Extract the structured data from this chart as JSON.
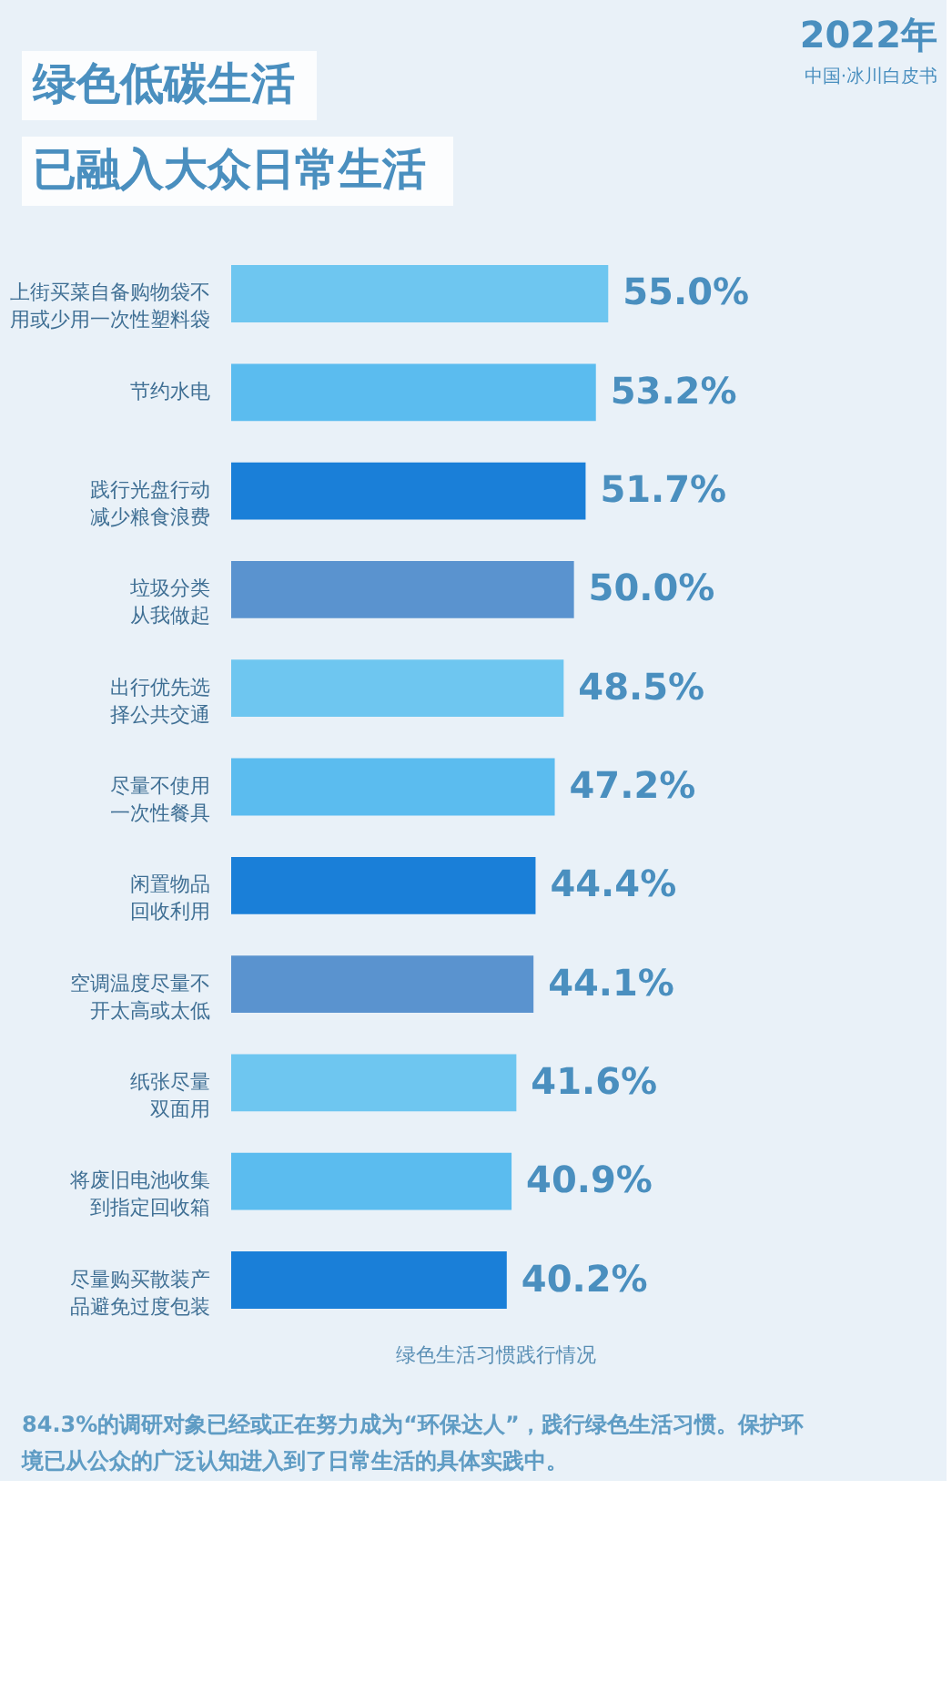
{
  "chart_data": {
    "type": "bar",
    "orientation": "horizontal",
    "title": "绿色低碳生活",
    "subtitle": "已融入大众日常生活",
    "xlabel": "绿色生活习惯践行情况",
    "categories": [
      "上街买菜自备购物袋不用或少用一次性塑料袋",
      "节约水电",
      "践行光盘行动减少粮食浪费",
      "垃圾分类从我做起",
      "出行优先选择公共交通",
      "尽量不使用一次性餐具",
      "闲置物品回收利用",
      "空调温度尽量不开太高或太低",
      "纸张尽量双面用",
      "将废旧电池收集到指定回收箱",
      "尽量购买散装产品避免过度包装"
    ],
    "values": [
      55.0,
      53.2,
      51.7,
      50.0,
      48.5,
      47.2,
      44.4,
      44.1,
      41.6,
      40.9,
      40.2
    ],
    "value_labels": [
      "55.0%",
      "53.2%",
      "51.7%",
      "50.0%",
      "48.5%",
      "47.2%",
      "44.4%",
      "44.1%",
      "41.6%",
      "40.9%",
      "40.2%"
    ],
    "colors": [
      "#6ec6f0",
      "#5bbcef",
      "#1a7fd8",
      "#5a93cf",
      "#6ec6f0",
      "#5bbcef",
      "#1a7fd8",
      "#5a93cf",
      "#6ec6f0",
      "#5bbcef",
      "#1a7fd8"
    ],
    "annotations": [
      "2022年",
      "中国·冰川白皮书",
      "84.3%的调研对象已经或正在努力成为“环保达人”，践行绿色生活习惯。保护环境已从公众的广泛认知进入到了日常生活的具体实践中。"
    ]
  }
}
